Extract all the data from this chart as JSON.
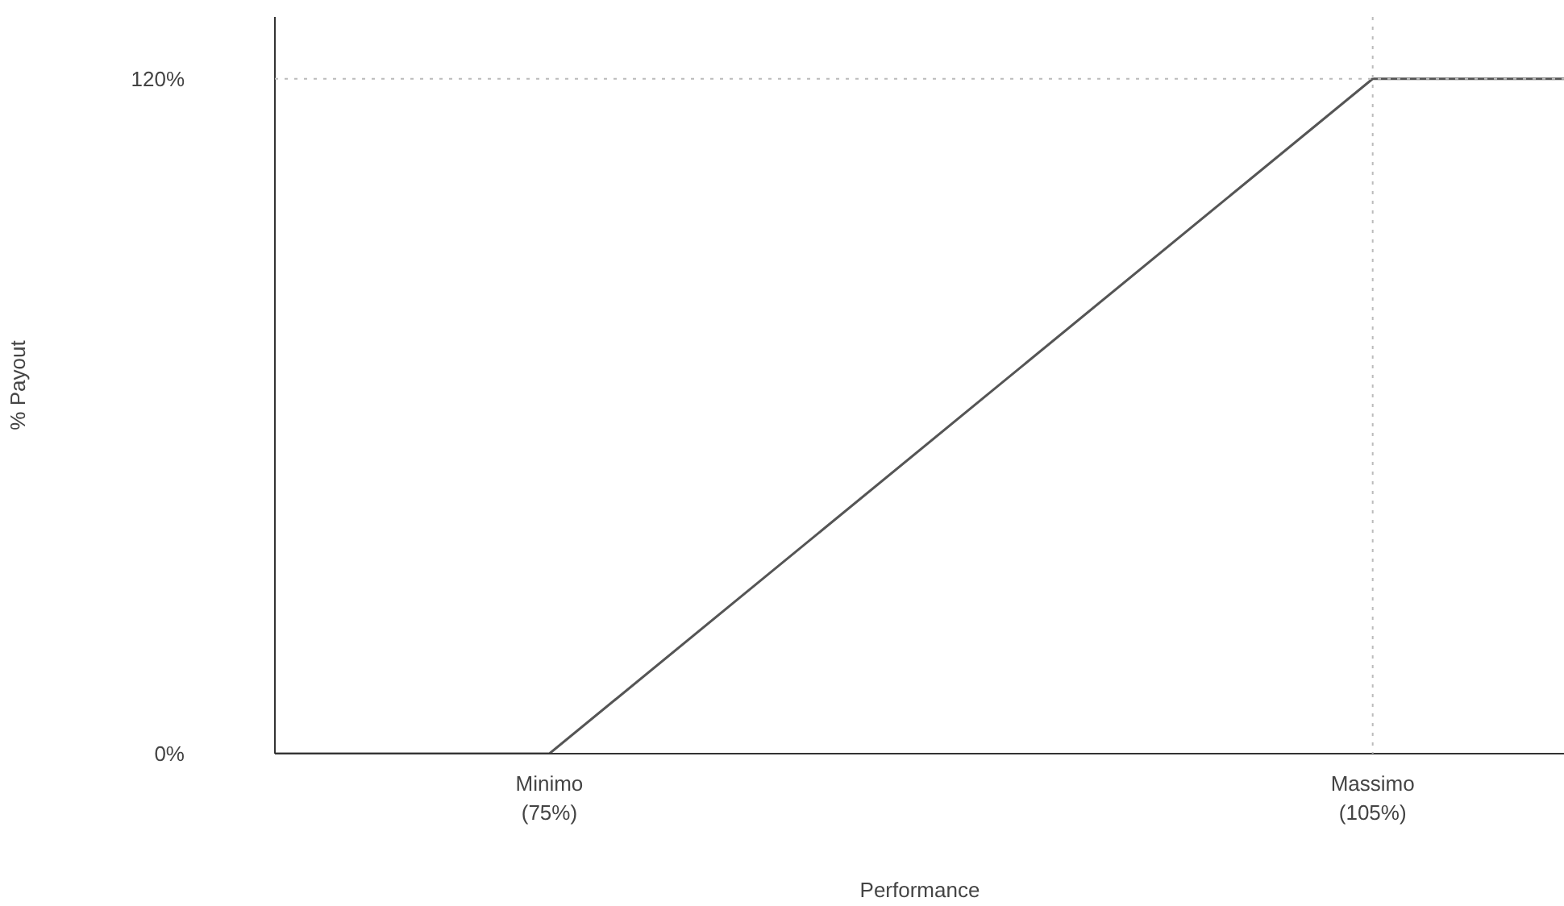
{
  "chart_data": {
    "type": "line",
    "xlabel": "Performance",
    "ylabel": "% Payout",
    "x": [
      65,
      75,
      105,
      112
    ],
    "series": [
      {
        "color": "#555555",
        "values": [
          0,
          0,
          120,
          120
        ]
      }
    ],
    "xlim": [
      65,
      112
    ],
    "ylim": [
      0,
      131
    ],
    "xticks": [
      {
        "value": 75,
        "label": "Minimo\n(75%)"
      },
      {
        "value": 105,
        "label": "Massimo\n(105%)"
      }
    ],
    "yticks": [
      {
        "value": 0,
        "label": "0%"
      },
      {
        "value": 120,
        "label": "120%"
      }
    ],
    "ref_lines": [
      {
        "axis": "y",
        "value": 120,
        "color": "#bbbbbb",
        "line_style": "dotted"
      },
      {
        "axis": "x",
        "value": 105,
        "color": "#bbbbbb",
        "line_style": "dotted"
      }
    ],
    "grid": false,
    "marker": "none",
    "line_style": "solid"
  }
}
